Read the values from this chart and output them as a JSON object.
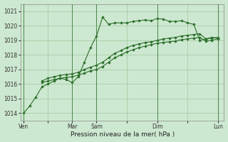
{
  "xlabel": "Pression niveau de la mer( hPa )",
  "background_color": "#cde8d0",
  "grid_color": "#a0c8a0",
  "line_color": "#2a6e2a",
  "ylim": [
    1013.5,
    1021.5
  ],
  "yticks": [
    1014,
    1015,
    1016,
    1017,
    1018,
    1019,
    1020,
    1021
  ],
  "day_labels": [
    "Ven",
    "",
    "Mar",
    "Sam",
    "",
    "Dim",
    "",
    "Lun"
  ],
  "day_positions": [
    0,
    4,
    8,
    12,
    17,
    22,
    27,
    32
  ],
  "vline_positions": [
    0,
    8,
    12,
    22,
    32
  ],
  "series1_x": [
    0,
    1,
    2,
    3,
    4,
    5,
    6,
    7,
    8,
    9,
    10,
    11,
    12,
    13,
    14,
    15,
    16,
    17,
    18,
    19,
    20,
    21,
    22,
    23,
    24,
    25,
    26,
    27,
    28,
    29,
    30,
    31,
    32
  ],
  "series1_y": [
    1014.0,
    1014.5,
    1015.1,
    1015.8,
    1016.0,
    1016.2,
    1016.4,
    1016.3,
    1016.1,
    1016.5,
    1017.5,
    1018.5,
    1019.3,
    1020.6,
    1020.1,
    1020.2,
    1020.2,
    1020.2,
    1020.3,
    1020.35,
    1020.4,
    1020.35,
    1020.5,
    1020.45,
    1020.3,
    1020.3,
    1020.35,
    1020.2,
    1020.1,
    1019.0,
    1019.1,
    1019.2,
    1019.15
  ],
  "series2_x": [
    3,
    4,
    5,
    6,
    7,
    8,
    9,
    10,
    11,
    12,
    13,
    14,
    15,
    16,
    17,
    18,
    19,
    20,
    21,
    22,
    23,
    24,
    25,
    26,
    27,
    28,
    29,
    30,
    31,
    32
  ],
  "series2_y": [
    1016.2,
    1016.4,
    1016.5,
    1016.6,
    1016.65,
    1016.7,
    1016.8,
    1017.0,
    1017.15,
    1017.3,
    1017.5,
    1017.8,
    1018.1,
    1018.3,
    1018.5,
    1018.65,
    1018.75,
    1018.85,
    1018.9,
    1019.0,
    1019.1,
    1019.15,
    1019.2,
    1019.3,
    1019.35,
    1019.4,
    1019.45,
    1019.1,
    1019.15,
    1019.2
  ],
  "series3_x": [
    3,
    4,
    5,
    6,
    7,
    8,
    9,
    10,
    11,
    12,
    13,
    14,
    15,
    16,
    17,
    18,
    19,
    20,
    21,
    22,
    23,
    24,
    25,
    26,
    27,
    28,
    29,
    30,
    31,
    32
  ],
  "series3_y": [
    1016.1,
    1016.2,
    1016.3,
    1016.4,
    1016.45,
    1016.5,
    1016.6,
    1016.75,
    1016.9,
    1017.0,
    1017.2,
    1017.5,
    1017.8,
    1018.0,
    1018.2,
    1018.35,
    1018.5,
    1018.6,
    1018.7,
    1018.8,
    1018.85,
    1018.9,
    1018.95,
    1019.05,
    1019.1,
    1019.15,
    1019.2,
    1018.95,
    1019.0,
    1019.1
  ]
}
